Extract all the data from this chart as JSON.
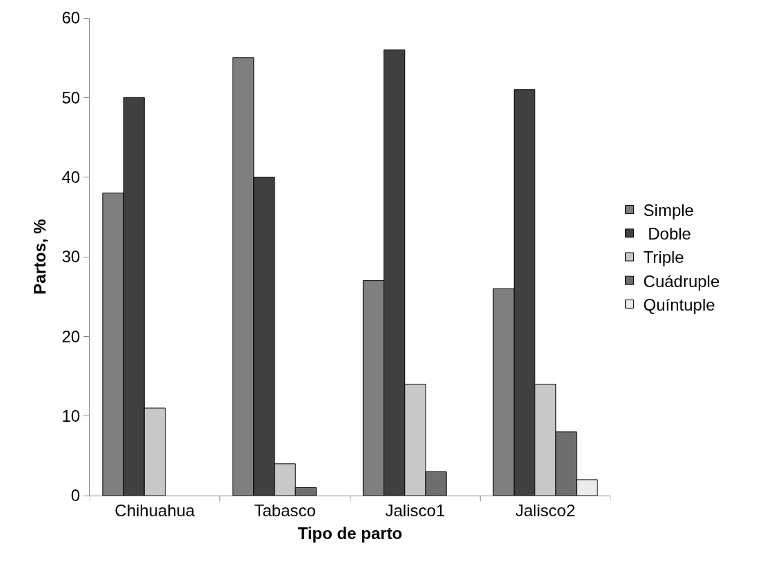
{
  "chart_data": {
    "type": "bar",
    "xlabel": "Tipo de parto",
    "ylabel": "Partos, %",
    "categories": [
      "Chihuahua",
      "Tabasco",
      "Jalisco1",
      "Jalisco2"
    ],
    "series": [
      {
        "name": "Simple",
        "color": "#7f7f7f",
        "values": [
          38,
          55,
          27,
          26
        ]
      },
      {
        "name": " Doble",
        "color": "#404040",
        "values": [
          50,
          40,
          56,
          51
        ]
      },
      {
        "name": "Triple",
        "color": "#c8c8c8",
        "values": [
          11,
          4,
          14,
          14
        ]
      },
      {
        "name": "Cuádruple",
        "color": "#6e6e6e",
        "values": [
          null,
          1,
          3,
          8
        ]
      },
      {
        "name": "Quíntuple",
        "color": "#ececec",
        "values": [
          null,
          null,
          null,
          2
        ]
      }
    ],
    "ylim": [
      0,
      60
    ],
    "yticks": [
      0,
      10,
      20,
      30,
      40,
      50,
      60
    ],
    "grid": false,
    "legend": "right"
  }
}
